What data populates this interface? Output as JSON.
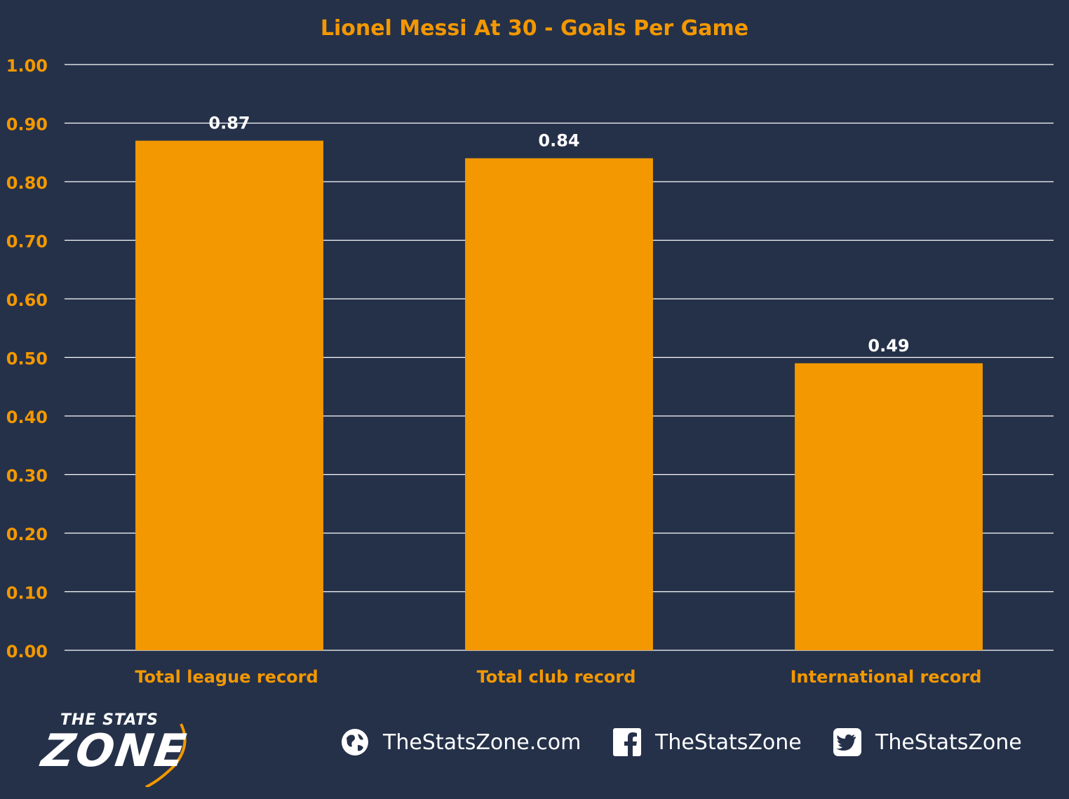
{
  "chart_data": {
    "type": "bar",
    "title": "Lionel Messi At 30 - Goals Per Game",
    "categories": [
      "Total league record",
      "Total club record",
      "International record"
    ],
    "values": [
      0.87,
      0.84,
      0.49
    ],
    "value_labels": [
      "0.87",
      "0.84",
      "0.49"
    ],
    "ylim": [
      0,
      1.0
    ],
    "yticks": [
      "0.00",
      "0.10",
      "0.20",
      "0.30",
      "0.40",
      "0.50",
      "0.60",
      "0.70",
      "0.80",
      "0.90",
      "1.00"
    ],
    "xlabel": "",
    "ylabel": "",
    "grid": true,
    "legend": "none"
  },
  "colors": {
    "background": "#253149",
    "bar": "#F39800",
    "accent_text": "#F39800",
    "gridline": "#ffffff",
    "value_label": "#ffffff"
  },
  "footer": {
    "logo_top": "THE STATS",
    "logo_bottom": "ZONE",
    "website_icon": "globe-icon",
    "website": "TheStatsZone.com",
    "facebook_icon": "facebook-icon",
    "facebook": "TheStatsZone",
    "twitter_icon": "twitter-icon",
    "twitter": "TheStatsZone"
  }
}
